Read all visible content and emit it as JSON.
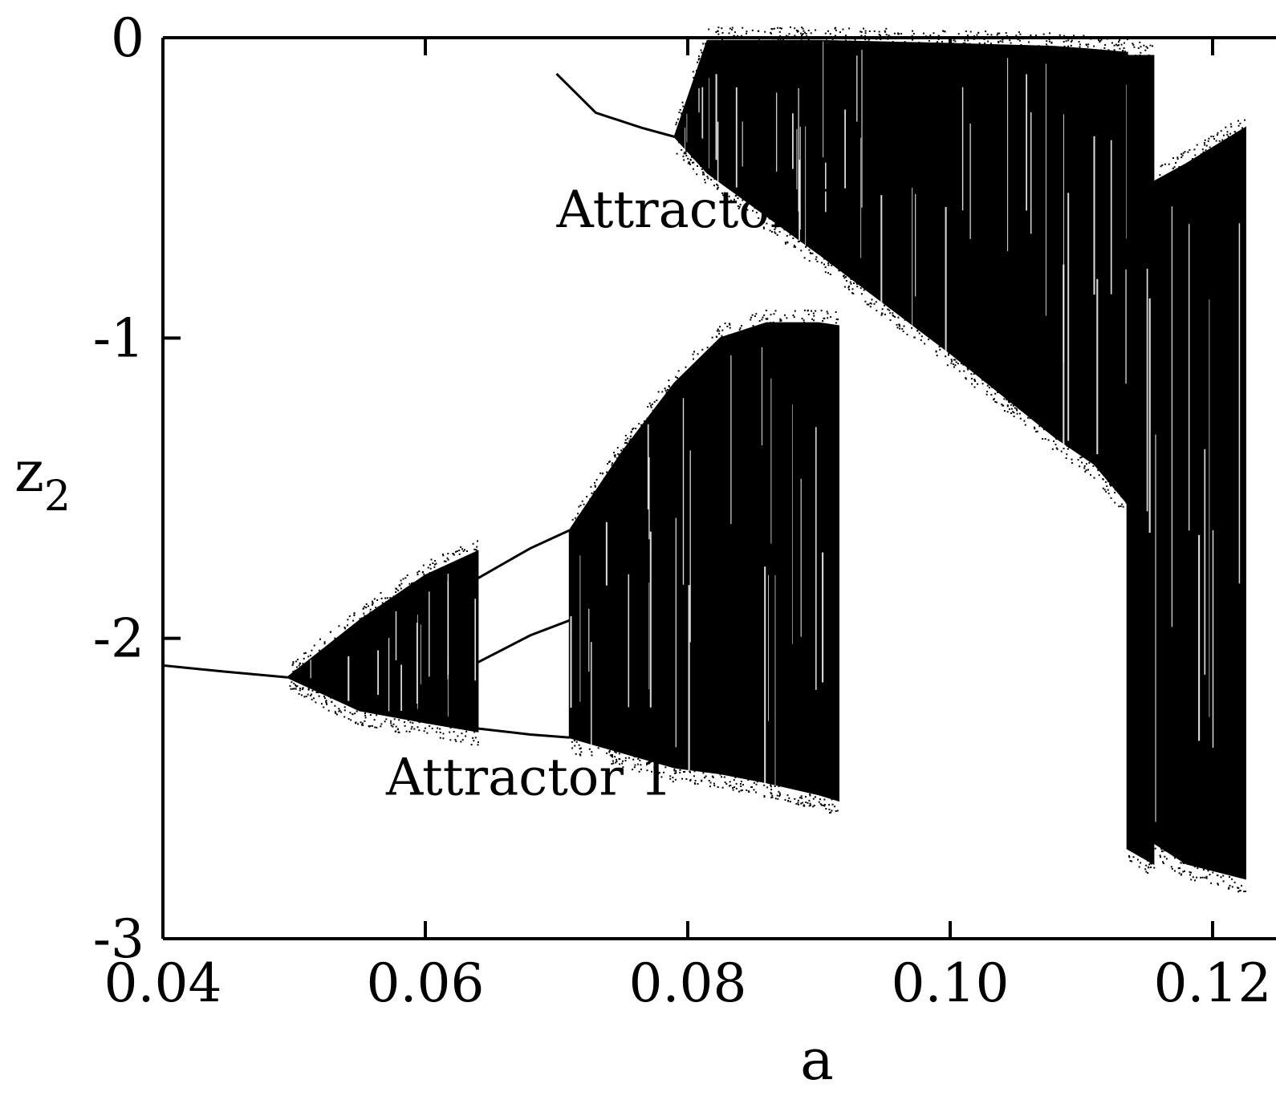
{
  "chart_data": {
    "type": "scatter",
    "subtype": "bifurcation-diagram",
    "title": "",
    "xlabel": "a",
    "ylabel": "z",
    "ylabel_subscript": "2",
    "xlim": [
      0.04,
      0.1225
    ],
    "ylim": [
      -3,
      0
    ],
    "xticks": [
      {
        "value": 0.04,
        "label": "0.04"
      },
      {
        "value": 0.06,
        "label": "0.06"
      },
      {
        "value": 0.08,
        "label": "0.08"
      },
      {
        "value": 0.1,
        "label": "0.10"
      },
      {
        "value": 0.12,
        "label": "0.12"
      }
    ],
    "yticks": [
      {
        "value": 0,
        "label": "0"
      },
      {
        "value": -1,
        "label": "-1"
      },
      {
        "value": -2,
        "label": "-2"
      },
      {
        "value": -3,
        "label": "-3"
      }
    ],
    "grid": false,
    "legend": "none",
    "color": "#000000",
    "annotations": [
      {
        "text": "Attractor 2",
        "x": 0.07,
        "y": -0.63
      },
      {
        "text": "Attractor 1",
        "x": 0.057,
        "y": -2.52
      }
    ],
    "series": [
      {
        "name": "Attractor 1",
        "branches": [
          {
            "kind": "curve",
            "points": [
              [
                0.04,
                -2.09
              ],
              [
                0.0445,
                -2.11
              ],
              [
                0.0495,
                -2.13
              ]
            ]
          },
          {
            "kind": "band",
            "points": [
              [
                0.0495,
                -2.13,
                -2.13
              ],
              [
                0.055,
                -1.94,
                -2.24
              ],
              [
                0.06,
                -1.79,
                -2.28
              ],
              [
                0.064,
                -1.71,
                -2.31
              ]
            ]
          },
          {
            "kind": "curve",
            "points": [
              [
                0.064,
                -1.8
              ],
              [
                0.068,
                -1.7
              ],
              [
                0.071,
                -1.64
              ]
            ]
          },
          {
            "kind": "curve",
            "points": [
              [
                0.064,
                -2.08
              ],
              [
                0.068,
                -1.99
              ],
              [
                0.071,
                -1.94
              ]
            ]
          },
          {
            "kind": "curve",
            "points": [
              [
                0.064,
                -2.3
              ],
              [
                0.068,
                -2.32
              ],
              [
                0.071,
                -2.33
              ]
            ]
          },
          {
            "kind": "band",
            "points": [
              [
                0.071,
                -1.64,
                -2.33
              ],
              [
                0.075,
                -1.38,
                -2.38
              ],
              [
                0.079,
                -1.15,
                -2.43
              ],
              [
                0.0825,
                -1.0,
                -2.45
              ],
              [
                0.086,
                -0.95,
                -2.48
              ],
              [
                0.09,
                -0.95,
                -2.52
              ],
              [
                0.0915,
                -0.96,
                -2.54
              ]
            ]
          }
        ]
      },
      {
        "name": "Attractor 2",
        "branches": [
          {
            "kind": "curve",
            "points": [
              [
                0.07,
                -0.12
              ],
              [
                0.073,
                -0.25
              ],
              [
                0.0765,
                -0.3
              ],
              [
                0.079,
                -0.33
              ]
            ]
          },
          {
            "kind": "band",
            "points": [
              [
                0.079,
                -0.33,
                -0.33
              ],
              [
                0.0815,
                -0.01,
                -0.45
              ],
              [
                0.09,
                -0.01,
                -0.72
              ],
              [
                0.1,
                -0.02,
                -1.05
              ],
              [
                0.108,
                -0.03,
                -1.33
              ],
              [
                0.111,
                -0.04,
                -1.42
              ],
              [
                0.1135,
                -0.05,
                -1.55
              ]
            ]
          },
          {
            "kind": "band",
            "points": [
              [
                0.1135,
                -0.06,
                -2.7
              ],
              [
                0.1155,
                -0.06,
                -2.75
              ]
            ]
          },
          {
            "kind": "band",
            "points": [
              [
                0.1155,
                -0.48,
                -2.68
              ],
              [
                0.118,
                -0.42,
                -2.75
              ],
              [
                0.1225,
                -0.3,
                -2.8
              ]
            ]
          }
        ]
      }
    ]
  }
}
